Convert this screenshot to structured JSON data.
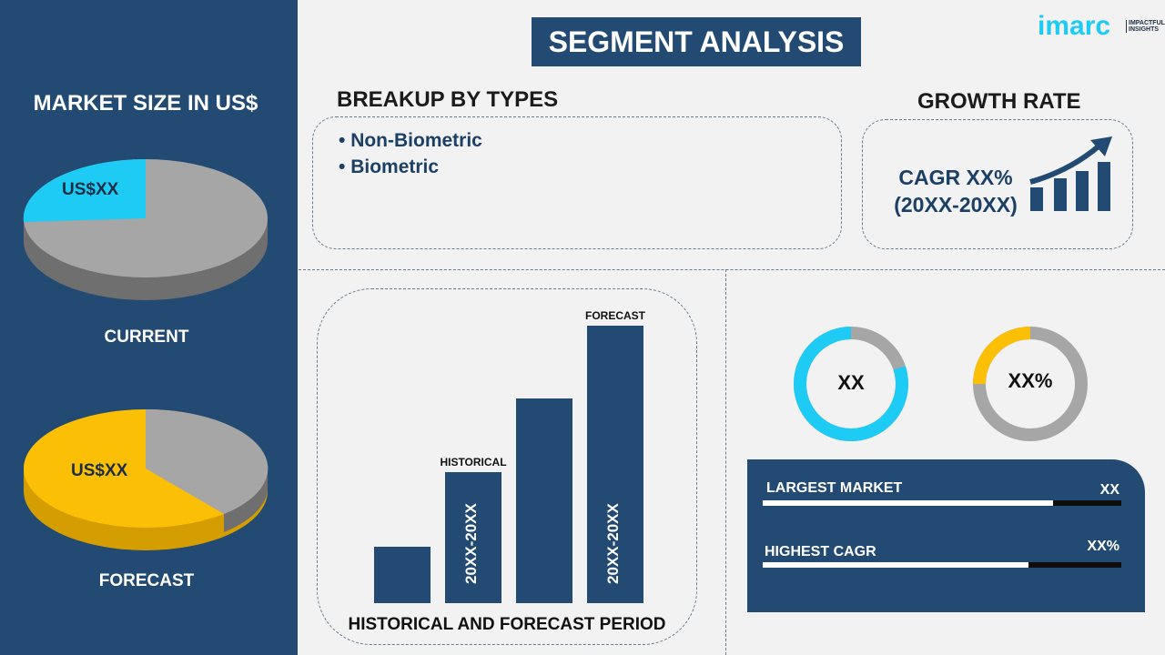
{
  "title": "SEGMENT ANALYSIS",
  "logo": {
    "brand": "imarc",
    "tagline": "IMPACTFUL INSIGHTS"
  },
  "left": {
    "heading": "MARKET SIZE IN US$",
    "current": {
      "value": "US$XX",
      "label": "CURRENT",
      "share": 0.2
    },
    "forecast": {
      "value": "US$XX",
      "label": "FORECAST",
      "share": 0.6
    }
  },
  "breakup": {
    "heading": "BREAKUP BY TYPES",
    "items": [
      "Non-Biometric",
      "Biometric"
    ]
  },
  "growth": {
    "heading": "GROWTH RATE",
    "line1": "CAGR XX%",
    "line2": "(20XX-20XX)"
  },
  "period": {
    "heading": "HISTORICAL AND FORECAST PERIOD",
    "historical_label": "HISTORICAL",
    "forecast_label": "FORECAST",
    "historical_range": "20XX-20XX",
    "forecast_range": "20XX-20XX"
  },
  "donuts": [
    {
      "value": "XX",
      "share": 0.8,
      "color": "#1ecbf5"
    },
    {
      "value": "XX%",
      "share": 0.25,
      "color": "#fbbf05"
    }
  ],
  "stats": [
    {
      "label": "LARGEST MARKET",
      "value": "XX",
      "fill": 0.81
    },
    {
      "label": "HIGHEST CAGR",
      "value": "XX%",
      "fill": 0.74
    }
  ],
  "colors": {
    "navy": "#224a72",
    "cyan": "#1ecbf5",
    "yellow": "#fbbf05",
    "gray": "#a6a6a6"
  }
}
